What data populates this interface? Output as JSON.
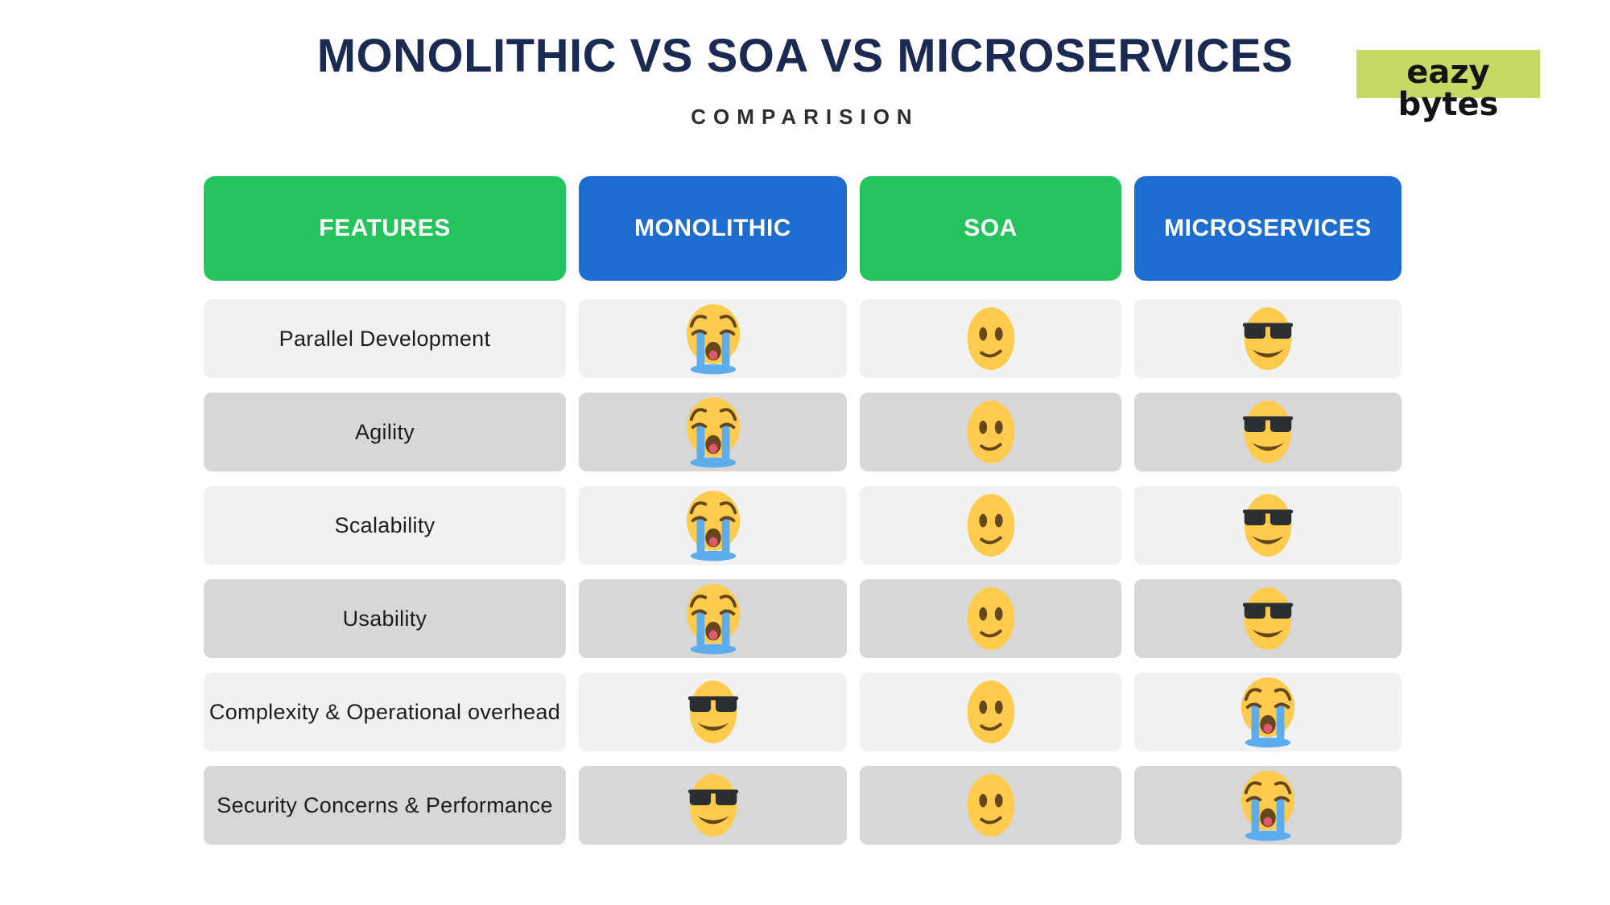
{
  "page": {
    "title": "MONOLITHIC VS SOA VS MICROSERVICES",
    "subtitle": "COMPARISION",
    "title_color": "#1b2a52"
  },
  "logo": {
    "line1": "eazy",
    "line2": "bytes",
    "background": "#c5da65",
    "text_color": "#141414"
  },
  "table": {
    "columns": [
      {
        "id": "features",
        "label": "FEATURES",
        "color": "#24c35d"
      },
      {
        "id": "monolithic",
        "label": "MONOLITHIC",
        "color": "#1d6cd0"
      },
      {
        "id": "soa",
        "label": "SOA",
        "color": "#24c35d"
      },
      {
        "id": "microservices",
        "label": "MICROSERVICES",
        "color": "#1d6cd0"
      }
    ],
    "row_colors": {
      "odd": "#f1f1f2",
      "even": "#d7d7d8"
    },
    "emoji_colors": {
      "face": "#ffcb4c",
      "tears": "#5dadec",
      "detail": "#65471b",
      "glasses": "#292f33",
      "tongue": "#e2566f"
    },
    "rows": [
      {
        "feature": "Parallel Development",
        "monolithic": "crying-face",
        "soa": "confused-face",
        "microservices": "sunglasses-face"
      },
      {
        "feature": "Agility",
        "monolithic": "crying-face",
        "soa": "confused-face",
        "microservices": "sunglasses-face"
      },
      {
        "feature": "Scalability",
        "monolithic": "crying-face",
        "soa": "confused-face",
        "microservices": "sunglasses-face"
      },
      {
        "feature": "Usability",
        "monolithic": "crying-face",
        "soa": "confused-face",
        "microservices": "sunglasses-face"
      },
      {
        "feature": "Complexity & Operational overhead",
        "monolithic": "sunglasses-face",
        "soa": "confused-face",
        "microservices": "crying-face"
      },
      {
        "feature": "Security Concerns & Performance",
        "monolithic": "sunglasses-face",
        "soa": "confused-face",
        "microservices": "crying-face"
      }
    ]
  }
}
